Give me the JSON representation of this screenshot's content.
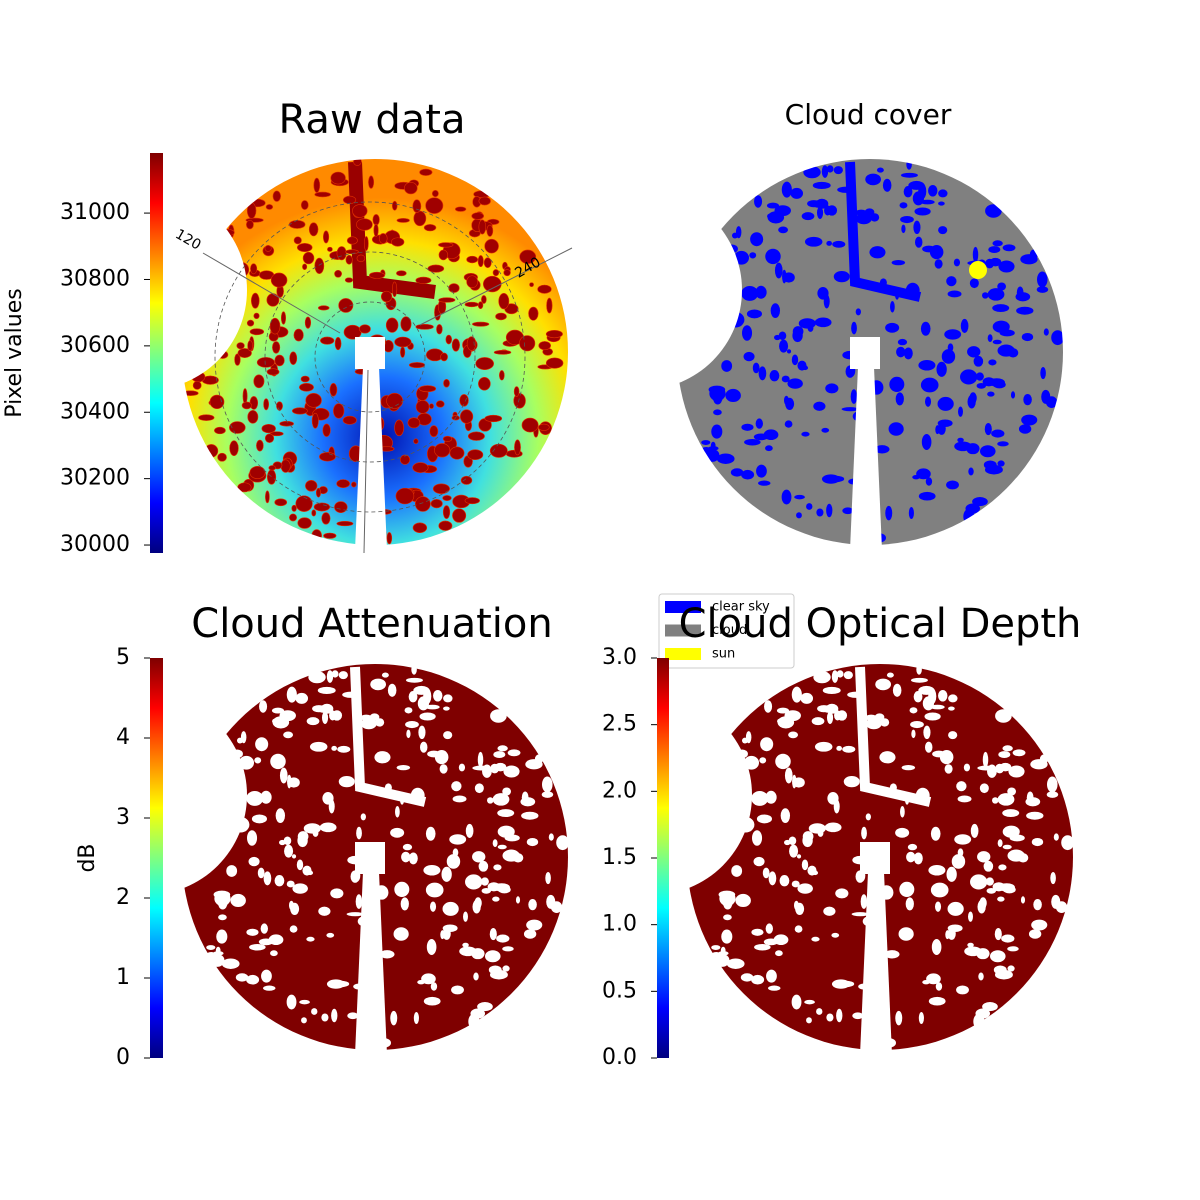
{
  "chart_data": [
    {
      "type": "image",
      "title": "Raw data",
      "colorbar": {
        "label": "Pixel values",
        "colormap": "jet",
        "ylim": [
          29976,
          31181
        ],
        "yticks": [
          30000,
          30200,
          30400,
          30600,
          30800,
          31000
        ]
      },
      "annotations": [
        "120",
        "240"
      ]
    },
    {
      "type": "image",
      "title": "Cloud cover",
      "series": [
        {
          "name": "clear sky",
          "color": "#0000ff"
        },
        {
          "name": "cloud",
          "color": "#808080"
        },
        {
          "name": "sun",
          "color": "#ffff00"
        }
      ]
    },
    {
      "type": "image",
      "title": "Cloud Attenuation",
      "colorbar": {
        "label": "dB",
        "colormap": "jet",
        "ylim": [
          0,
          5
        ],
        "yticks": [
          0,
          1,
          2,
          3,
          4,
          5
        ]
      }
    },
    {
      "type": "image",
      "title": "Cloud Optical Depth",
      "colorbar": {
        "colormap": "jet",
        "ylim": [
          0,
          3
        ],
        "yticks": [
          {
            "value": 0,
            "label": "0.0"
          },
          0.5,
          {
            "value": 1,
            "label": "1.0"
          },
          1.5,
          {
            "value": 2,
            "label": "2.0"
          },
          2.5,
          {
            "value": 3,
            "label": "3.0"
          }
        ]
      }
    }
  ]
}
